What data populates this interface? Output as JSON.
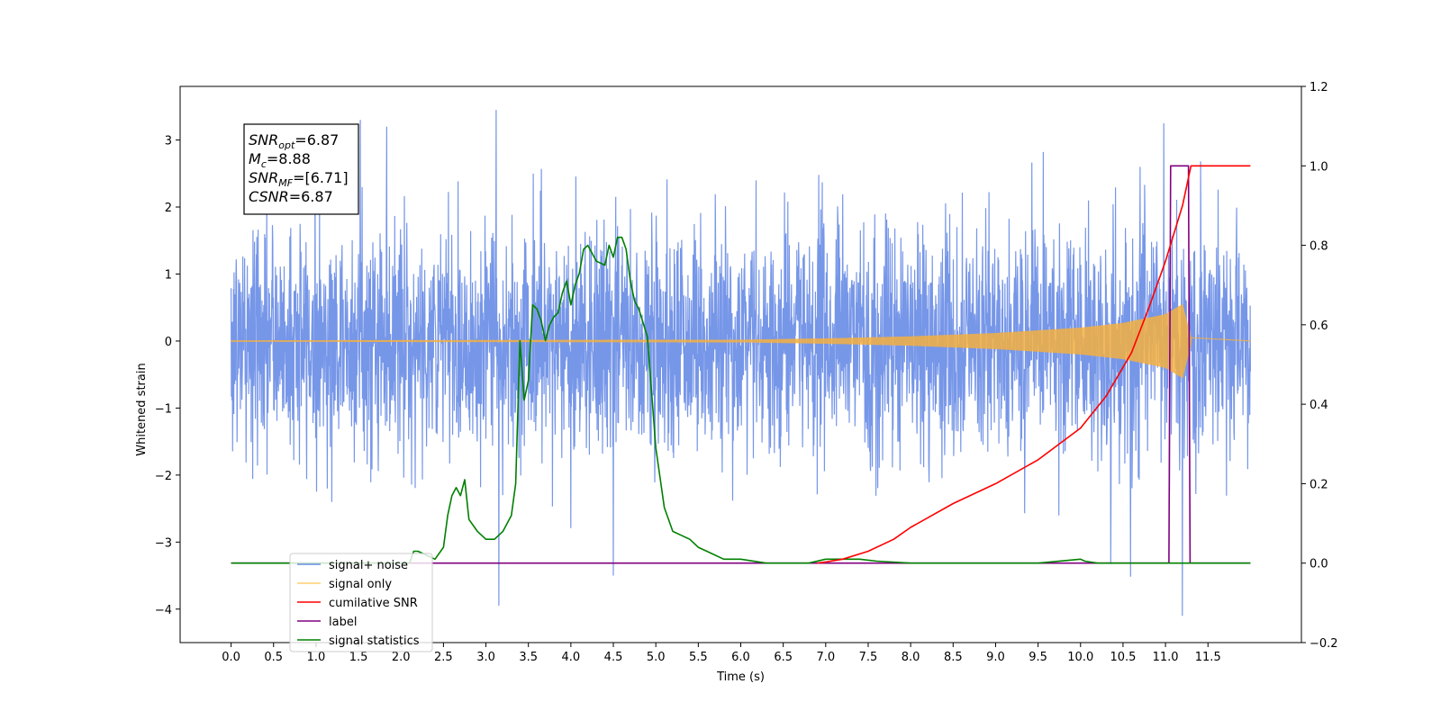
{
  "chart_data": {
    "type": "line",
    "title": "",
    "xlabel": "Time (s)",
    "ylabel": "Whitened strain",
    "ylabel_right": "",
    "xlim": [
      -0.6,
      12.6
    ],
    "ylim": [
      -4.5,
      3.8
    ],
    "ylim_right": [
      -0.2,
      1.2
    ],
    "x_ticks": [
      0.0,
      0.5,
      1.0,
      1.5,
      2.0,
      2.5,
      3.0,
      3.5,
      4.0,
      4.5,
      5.0,
      5.5,
      6.0,
      6.5,
      7.0,
      7.5,
      8.0,
      8.5,
      9.0,
      9.5,
      10.0,
      10.5,
      11.0,
      11.5
    ],
    "x_tick_labels": [
      "0.0",
      "0.5",
      "1.0",
      "1.5",
      "2.0",
      "2.5",
      "3.0",
      "3.5",
      "4.0",
      "4.5",
      "5.0",
      "5.5",
      "6.0",
      "6.5",
      "7.0",
      "7.5",
      "8.0",
      "8.5",
      "9.0",
      "9.5",
      "10.0",
      "10.5",
      "11.0",
      "11.5"
    ],
    "y_ticks": [
      3,
      2,
      1,
      0,
      -1,
      -2,
      -3,
      -4
    ],
    "y_tick_labels": [
      "3",
      "2",
      "1",
      "0",
      "−1",
      "−2",
      "−3",
      "−4"
    ],
    "y_right_ticks": [
      1.2,
      1.0,
      0.8,
      0.6,
      0.4,
      0.2,
      0.0,
      -0.2
    ],
    "y_right_tick_labels": [
      "1.2",
      "1.0",
      "0.8",
      "0.6",
      "0.4",
      "0.2",
      "0.0",
      "−0.2"
    ],
    "grid": false,
    "legend_position": "lower-left",
    "stats_box": [
      {
        "base": "SNR",
        "sub": "opt",
        "value": "=6.87"
      },
      {
        "base": "M",
        "sub": "c",
        "value": "=8.88"
      },
      {
        "base": "SNR",
        "sub": "MF",
        "value": "=[6.71]"
      },
      {
        "base": "CSNR",
        "sub": "",
        "value": "=6.87"
      }
    ],
    "series": [
      {
        "name": "signal+ noise",
        "axis": "left",
        "color": "#6a8de6",
        "kind": "noise",
        "t_range": [
          0.0,
          12.0
        ],
        "amplitude_sigma": 0.85,
        "peak_y": [
          3.45,
          3.3,
          3.25,
          3.2
        ],
        "trough_y": [
          -3.95,
          -4.1,
          -3.5
        ]
      },
      {
        "name": "signal only",
        "axis": "left",
        "color": "#f5b041",
        "kind": "chirp",
        "t_range": [
          0.0,
          11.3
        ],
        "envelope": {
          "x": [
            0.0,
            6.0,
            7.0,
            8.0,
            9.0,
            10.0,
            10.5,
            11.0,
            11.2,
            11.3
          ],
          "y": [
            0.01,
            0.02,
            0.04,
            0.07,
            0.12,
            0.2,
            0.27,
            0.4,
            0.55,
            0.05
          ]
        }
      },
      {
        "name": "cumilative SNR",
        "axis": "right",
        "color": "#ff0000",
        "kind": "line",
        "x": [
          6.9,
          7.0,
          7.2,
          7.5,
          7.8,
          8.0,
          8.5,
          9.0,
          9.5,
          10.0,
          10.3,
          10.6,
          10.8,
          11.0,
          11.2,
          11.3,
          11.5,
          12.0
        ],
        "y": [
          0.0,
          0.003,
          0.01,
          0.03,
          0.06,
          0.09,
          0.15,
          0.2,
          0.26,
          0.34,
          0.42,
          0.53,
          0.64,
          0.76,
          0.9,
          1.0,
          1.0,
          1.0
        ]
      },
      {
        "name": "label",
        "axis": "right",
        "color": "#800080",
        "kind": "line",
        "x": [
          0.0,
          11.04,
          11.06,
          11.27,
          11.29,
          12.0
        ],
        "y": [
          0.0,
          0.0,
          1.0,
          1.0,
          0.0,
          0.0
        ]
      },
      {
        "name": "signal statistics",
        "axis": "right",
        "color": "#008000",
        "kind": "line",
        "x": [
          0.0,
          2.1,
          2.15,
          2.2,
          2.3,
          2.4,
          2.5,
          2.55,
          2.6,
          2.65,
          2.7,
          2.75,
          2.8,
          2.9,
          3.0,
          3.1,
          3.2,
          3.3,
          3.35,
          3.4,
          3.45,
          3.5,
          3.55,
          3.6,
          3.65,
          3.7,
          3.75,
          3.8,
          3.85,
          3.9,
          3.95,
          4.0,
          4.05,
          4.1,
          4.15,
          4.2,
          4.3,
          4.4,
          4.45,
          4.5,
          4.55,
          4.6,
          4.65,
          4.7,
          4.75,
          4.8,
          4.9,
          5.0,
          5.1,
          5.2,
          5.3,
          5.4,
          5.5,
          5.6,
          5.8,
          6.0,
          6.3,
          6.8,
          7.0,
          7.2,
          7.4,
          7.6,
          8.0,
          8.5,
          9.5,
          10.0,
          10.05,
          10.2,
          12.0
        ],
        "y": [
          0.0,
          0.0,
          0.03,
          0.03,
          0.02,
          0.01,
          0.04,
          0.12,
          0.17,
          0.19,
          0.17,
          0.21,
          0.11,
          0.08,
          0.06,
          0.06,
          0.08,
          0.12,
          0.2,
          0.56,
          0.41,
          0.46,
          0.65,
          0.64,
          0.61,
          0.56,
          0.6,
          0.62,
          0.63,
          0.68,
          0.71,
          0.65,
          0.7,
          0.73,
          0.79,
          0.8,
          0.76,
          0.75,
          0.8,
          0.77,
          0.82,
          0.82,
          0.79,
          0.71,
          0.66,
          0.64,
          0.57,
          0.29,
          0.14,
          0.08,
          0.07,
          0.06,
          0.04,
          0.03,
          0.01,
          0.01,
          0.0,
          0.0,
          0.01,
          0.01,
          0.01,
          0.005,
          0.0,
          0.0,
          0.0,
          0.01,
          0.005,
          0.0,
          0.0
        ]
      }
    ],
    "legend": [
      {
        "label": "signal+ noise",
        "color": "#6a8de6"
      },
      {
        "label": "signal only",
        "color": "#ffcf70"
      },
      {
        "label": "cumilative SNR",
        "color": "#ff0000"
      },
      {
        "label": "label",
        "color": "#800080"
      },
      {
        "label": "signal statistics",
        "color": "#008000"
      }
    ]
  }
}
